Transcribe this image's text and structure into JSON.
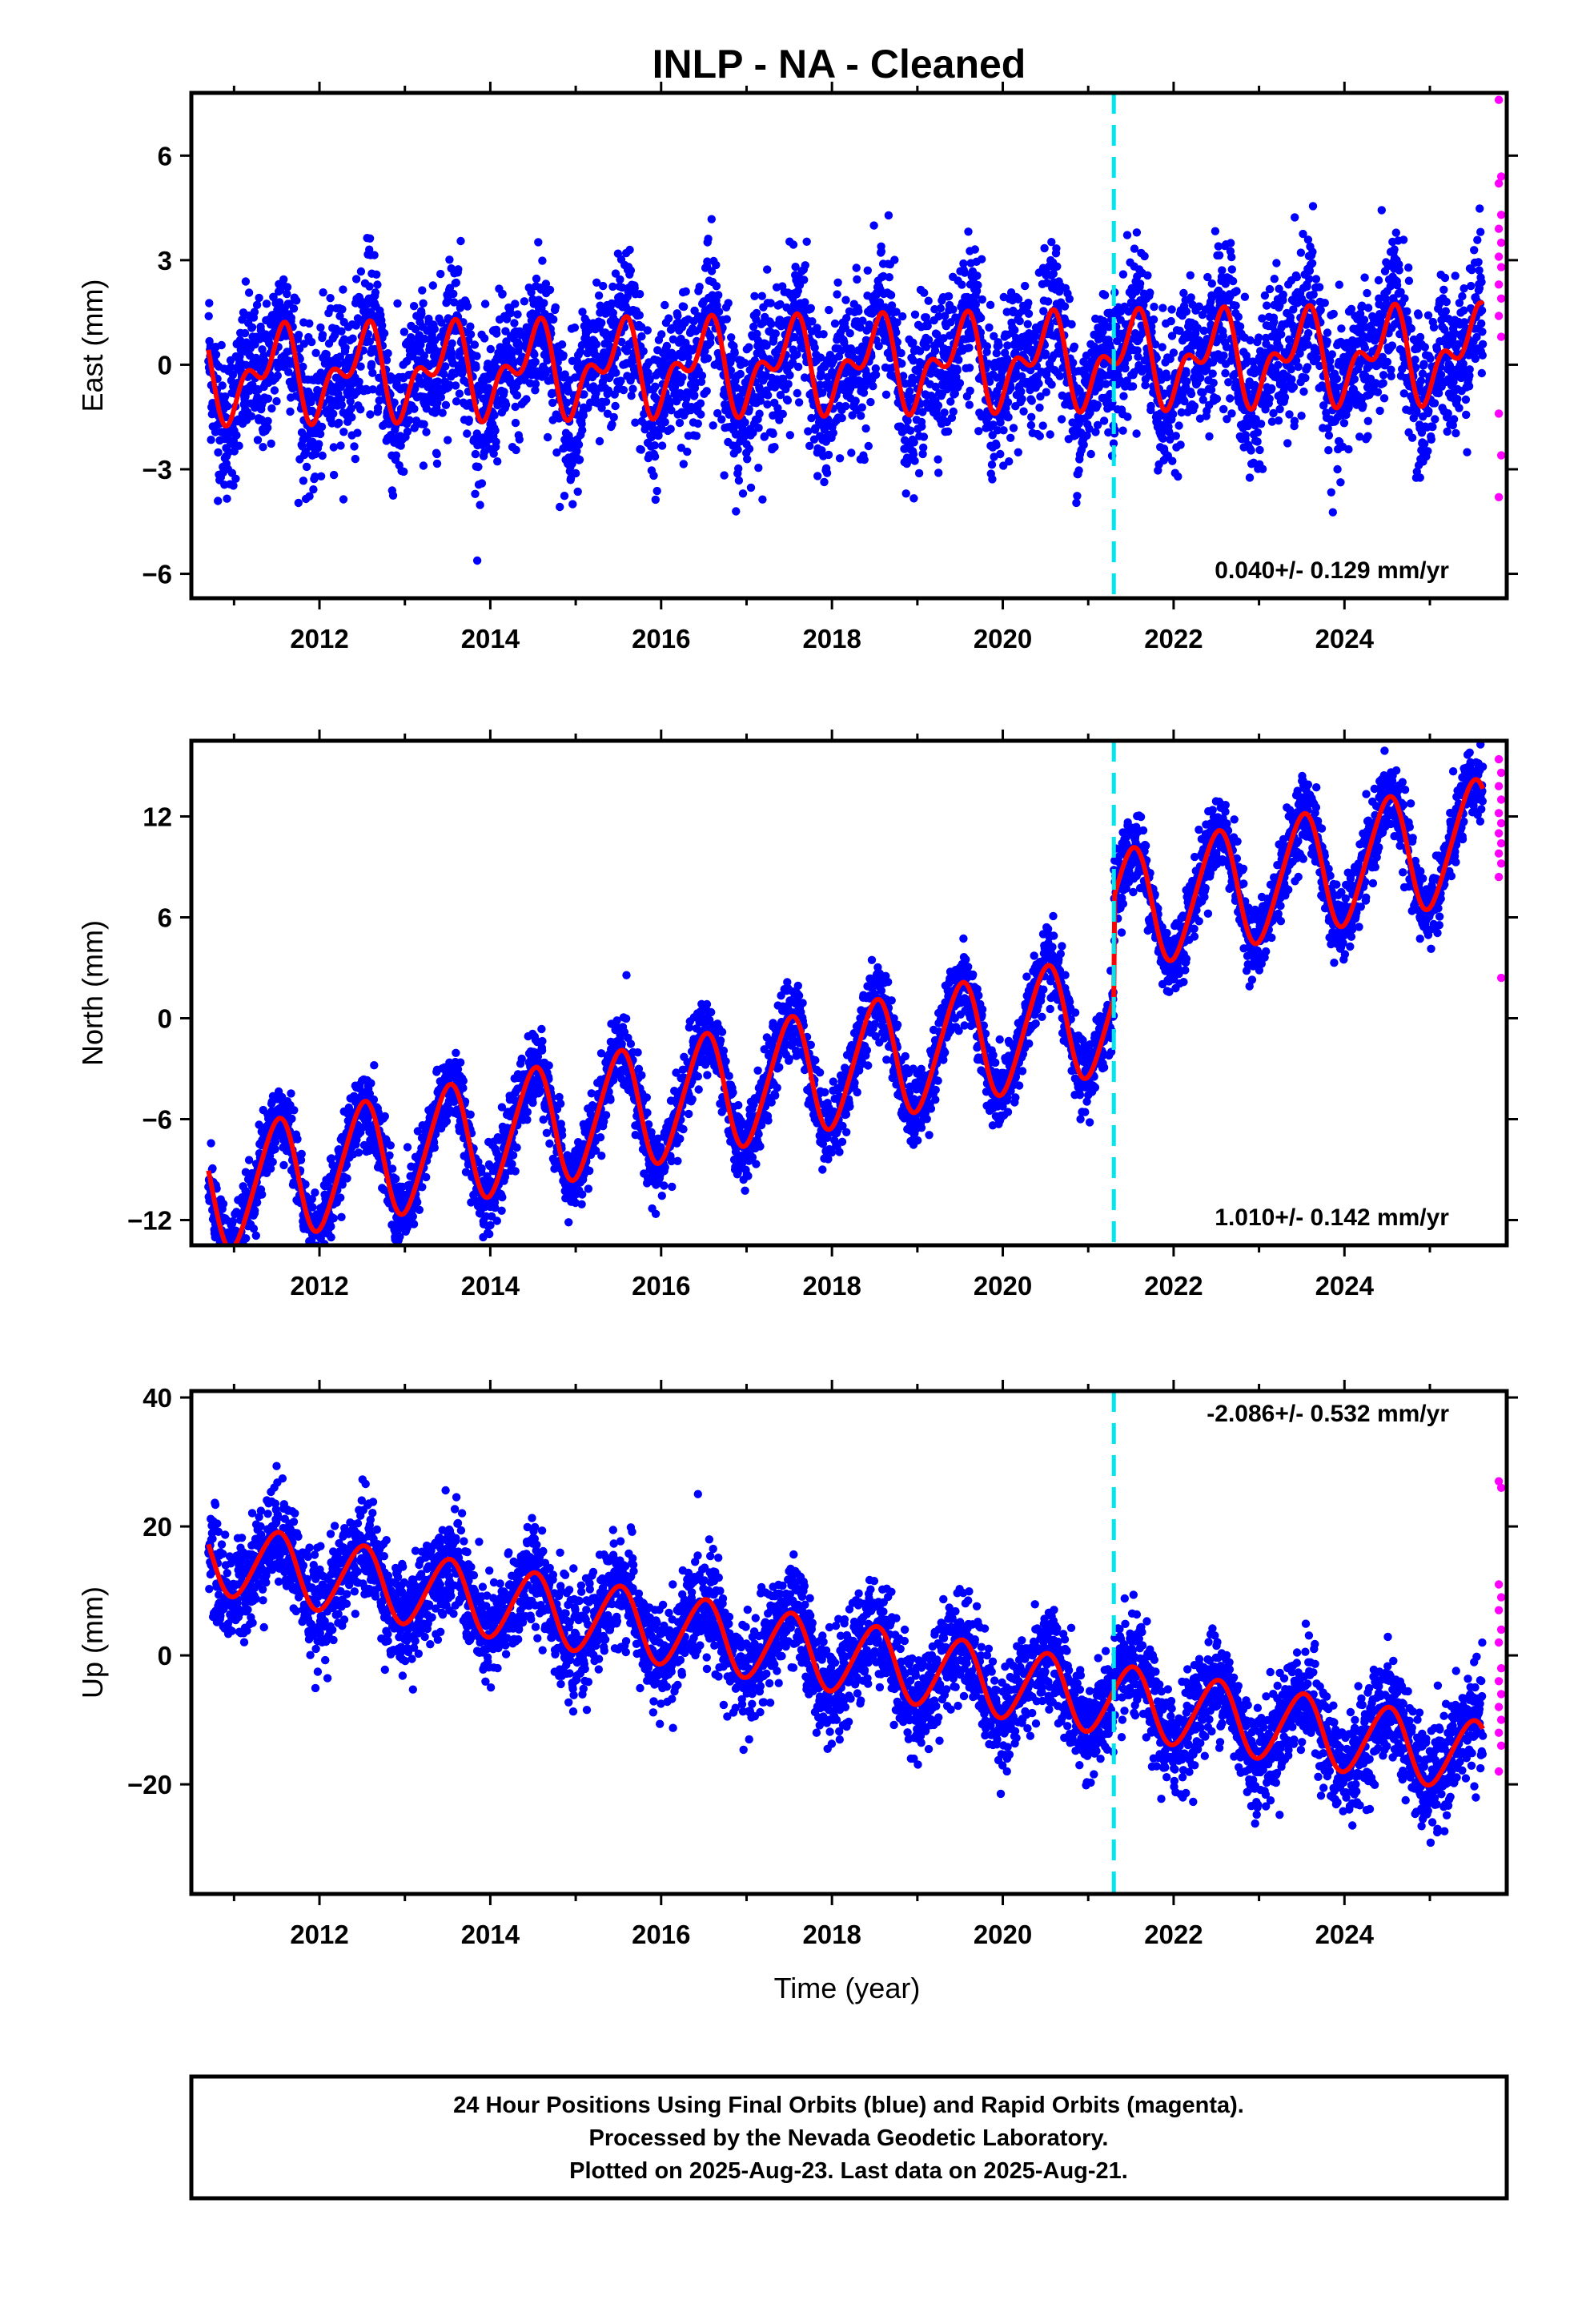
{
  "title": "INLP  - NA - Cleaned",
  "xlabel": "Time (year)",
  "footer": [
    "24 Hour Positions Using Final Orbits (blue) and Rapid Orbits (magenta).",
    "Processed by the Nevada Geodetic Laboratory.",
    "Plotted on 2025-Aug-23. Last data on 2025-Aug-21."
  ],
  "colors": {
    "final": "#0000ff",
    "rapid": "#ff00ff",
    "model": "#ff0000",
    "step": "#00e5ee"
  },
  "chart_data": [
    {
      "type": "scatter",
      "ylabel": "East (mm)",
      "rate_label": "0.040+/- 0.129 mm/yr",
      "xlim": [
        2010.5,
        2025.9
      ],
      "ylim": [
        -6.7,
        7.8
      ],
      "x_ticks": [
        2012,
        2014,
        2016,
        2018,
        2020,
        2022,
        2024
      ],
      "y_ticks": [
        6,
        3,
        0,
        -3,
        -6
      ],
      "y_tick_labels": [
        "6",
        "3",
        "0",
        "−3",
        "−6"
      ],
      "step_epoch": 2021.3,
      "data_start": 2010.7,
      "data_end": 2025.62,
      "model": {
        "rate": 0.04,
        "step": 0.0,
        "annual_amp": 1.0,
        "semiannual_amp": 0.7,
        "noise": 1.05
      },
      "rapid_values": [
        7.6,
        5.4,
        5.2,
        4.3,
        3.9,
        3.5,
        3.1,
        2.8,
        2.3,
        1.9,
        1.4,
        0.8,
        -1.4,
        -2.6,
        -3.8
      ]
    },
    {
      "type": "scatter",
      "ylabel": "North (mm)",
      "rate_label": "1.010+/- 0.142 mm/yr",
      "xlim": [
        2010.5,
        2025.9
      ],
      "ylim": [
        -13.5,
        16.5
      ],
      "x_ticks": [
        2012,
        2014,
        2016,
        2018,
        2020,
        2022,
        2024
      ],
      "y_ticks": [
        12,
        6,
        0,
        -6,
        -12
      ],
      "y_tick_labels": [
        "12",
        "6",
        "0",
        "−6",
        "−12"
      ],
      "step_epoch": 2021.3,
      "data_start": 2010.7,
      "data_end": 2025.62,
      "model": {
        "rate": 1.01,
        "step": 6.0,
        "annual_amp": 3.5,
        "semiannual_amp": 0.4,
        "noise": 1.1
      },
      "rapid_values": [
        15.4,
        14.6,
        13.8,
        13.0,
        12.2,
        11.6,
        11.0,
        10.4,
        9.8,
        9.2,
        8.4,
        2.4
      ]
    },
    {
      "type": "scatter",
      "ylabel": "Up (mm)",
      "rate_label": "-2.086+/- 0.532 mm/yr",
      "xlim": [
        2010.5,
        2025.9
      ],
      "ylim": [
        -37,
        41
      ],
      "x_ticks": [
        2012,
        2014,
        2016,
        2018,
        2020,
        2022,
        2024
      ],
      "y_ticks": [
        40,
        20,
        0,
        -20
      ],
      "y_tick_labels": [
        "40",
        "20",
        "0",
        "−20"
      ],
      "step_epoch": 2021.3,
      "data_start": 2010.7,
      "data_end": 2025.62,
      "model": {
        "rate": -2.086,
        "step": 0.0,
        "annual_amp": 5.5,
        "semiannual_amp": 0.5,
        "noise": 4.0
      },
      "rapid_values": [
        27,
        26,
        11,
        9,
        7,
        4,
        2,
        -2,
        -4,
        -6,
        -8,
        -10,
        -12,
        -14,
        -18
      ]
    }
  ]
}
